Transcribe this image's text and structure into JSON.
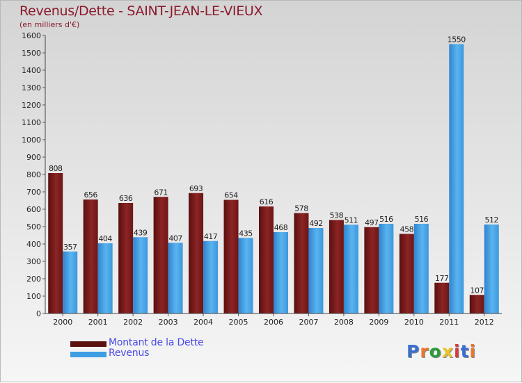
{
  "title": "Revenus/Dette - SAINT-JEAN-LE-VIEUX",
  "subtitle": "(en milliers d'€)",
  "logo": {
    "text": "Proxiti",
    "colors": [
      "#3a6fd0",
      "#e8772a",
      "#2b9c3a",
      "#e8c32a",
      "#d63a3a",
      "#3a6fd0",
      "#e8772a"
    ]
  },
  "chart_data": {
    "type": "bar",
    "categories": [
      "2000",
      "2001",
      "2002",
      "2003",
      "2004",
      "2005",
      "2006",
      "2007",
      "2008",
      "2009",
      "2010",
      "2011",
      "2012"
    ],
    "series": [
      {
        "name": "Montant de la Dette",
        "color": "#7a1b1b",
        "values": [
          808,
          656,
          636,
          671,
          693,
          654,
          616,
          578,
          538,
          497,
          458,
          177,
          107
        ]
      },
      {
        "name": "Revenus",
        "color": "#3f9de4",
        "values": [
          357,
          404,
          439,
          407,
          417,
          435,
          468,
          492,
          511,
          516,
          516,
          1550,
          512
        ]
      }
    ],
    "ylim": [
      0,
      1600
    ],
    "yticks": [
      0,
      100,
      200,
      300,
      400,
      500,
      600,
      700,
      800,
      900,
      1000,
      1100,
      1200,
      1300,
      1400,
      1500,
      1600
    ],
    "grid": false,
    "legend": "bottom-left"
  }
}
